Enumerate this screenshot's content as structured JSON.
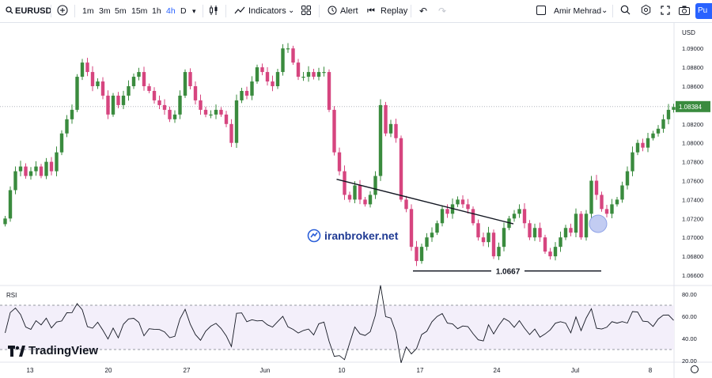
{
  "toolbar": {
    "symbol": "EURUSD",
    "timeframes": [
      "1m",
      "3m",
      "5m",
      "15m",
      "1h",
      "4h",
      "D"
    ],
    "active_timeframe": "4h",
    "indicators_label": "Indicators",
    "alert_label": "Alert",
    "replay_label": "Replay",
    "user_name": "Amir Mehrad",
    "publish_label": "Pu"
  },
  "price_axis": {
    "currency": "USD",
    "ticks": [
      "1.09000",
      "1.08800",
      "1.08600",
      "1.08400",
      "1.08200",
      "1.08000",
      "1.07800",
      "1.07600",
      "1.07400",
      "1.07200",
      "1.07000",
      "1.06800",
      "1.06600"
    ],
    "current_price": "1.08384"
  },
  "rsi_panel": {
    "label": "RSI",
    "ticks": [
      "80.00",
      "60.00",
      "40.00",
      "20.00"
    ]
  },
  "time_axis": {
    "labels": [
      "13",
      "20",
      "27",
      "Jun",
      "3",
      "10",
      "17",
      "24",
      "Jul",
      "8"
    ]
  },
  "annotations": {
    "support_label": "1.0667"
  },
  "watermark": {
    "site": "iranbroker.net",
    "brand": "TradingView"
  },
  "colors": {
    "up": "#3a8b3e",
    "down": "#d6457f",
    "resistance_zone": "#f7c5c9",
    "rsi_band": "#f3effa",
    "accent": "#2962ff"
  },
  "chart_data": {
    "type": "candlestick",
    "symbol": "EURUSD",
    "ylim": [
      1.0653,
      1.0928
    ],
    "resistance_zone": [
      1.0838,
      1.0848
    ],
    "support_level": 1.0667,
    "trendline": [
      {
        "i": 68,
        "price": 1.0764
      },
      {
        "i": 95,
        "price": 1.0716
      }
    ],
    "series": [
      {
        "name": "closes",
        "values": [
          1.072,
          1.075,
          1.077,
          1.0775,
          1.0765,
          1.077,
          1.0775,
          1.0765,
          1.078,
          1.077,
          1.079,
          1.081,
          1.0825,
          1.0835,
          1.087,
          1.0885,
          1.0875,
          1.086,
          1.0865,
          1.085,
          1.083,
          1.085,
          1.084,
          1.085,
          1.086,
          1.087,
          1.0875,
          1.086,
          1.0855,
          1.0845,
          1.084,
          1.0835,
          1.0825,
          1.083,
          1.085,
          1.0875,
          1.086,
          1.0845,
          1.0835,
          1.083,
          1.083,
          1.0835,
          1.083,
          1.082,
          1.08,
          1.0845,
          1.0855,
          1.085,
          1.0865,
          1.088,
          1.0875,
          1.0865,
          1.086,
          1.0875,
          1.09,
          1.09,
          1.0885,
          1.087,
          1.087,
          1.0875,
          1.087,
          1.0875,
          1.0875,
          1.0835,
          1.079,
          1.077,
          1.0745,
          1.074,
          1.0755,
          1.074,
          1.0735,
          1.0745,
          1.0765,
          1.084,
          1.081,
          1.082,
          1.0805,
          1.074,
          1.073,
          1.069,
          1.0675,
          1.069,
          1.07,
          1.0705,
          1.0715,
          1.073,
          1.0725,
          1.0735,
          1.074,
          1.0735,
          1.073,
          1.0715,
          1.07,
          1.0695,
          1.0705,
          1.068,
          1.069,
          1.071,
          1.072,
          1.0725,
          1.073,
          1.0715,
          1.07,
          1.071,
          1.07,
          1.0685,
          1.068,
          1.069,
          1.07,
          1.071,
          1.0705,
          1.0725,
          1.07,
          1.0725,
          1.076,
          1.0745,
          1.073,
          1.0725,
          1.0735,
          1.074,
          1.0755,
          1.077,
          1.079,
          1.08,
          1.0795,
          1.0805,
          1.081,
          1.0815,
          1.0825,
          1.0835,
          1.0838
        ]
      }
    ]
  }
}
